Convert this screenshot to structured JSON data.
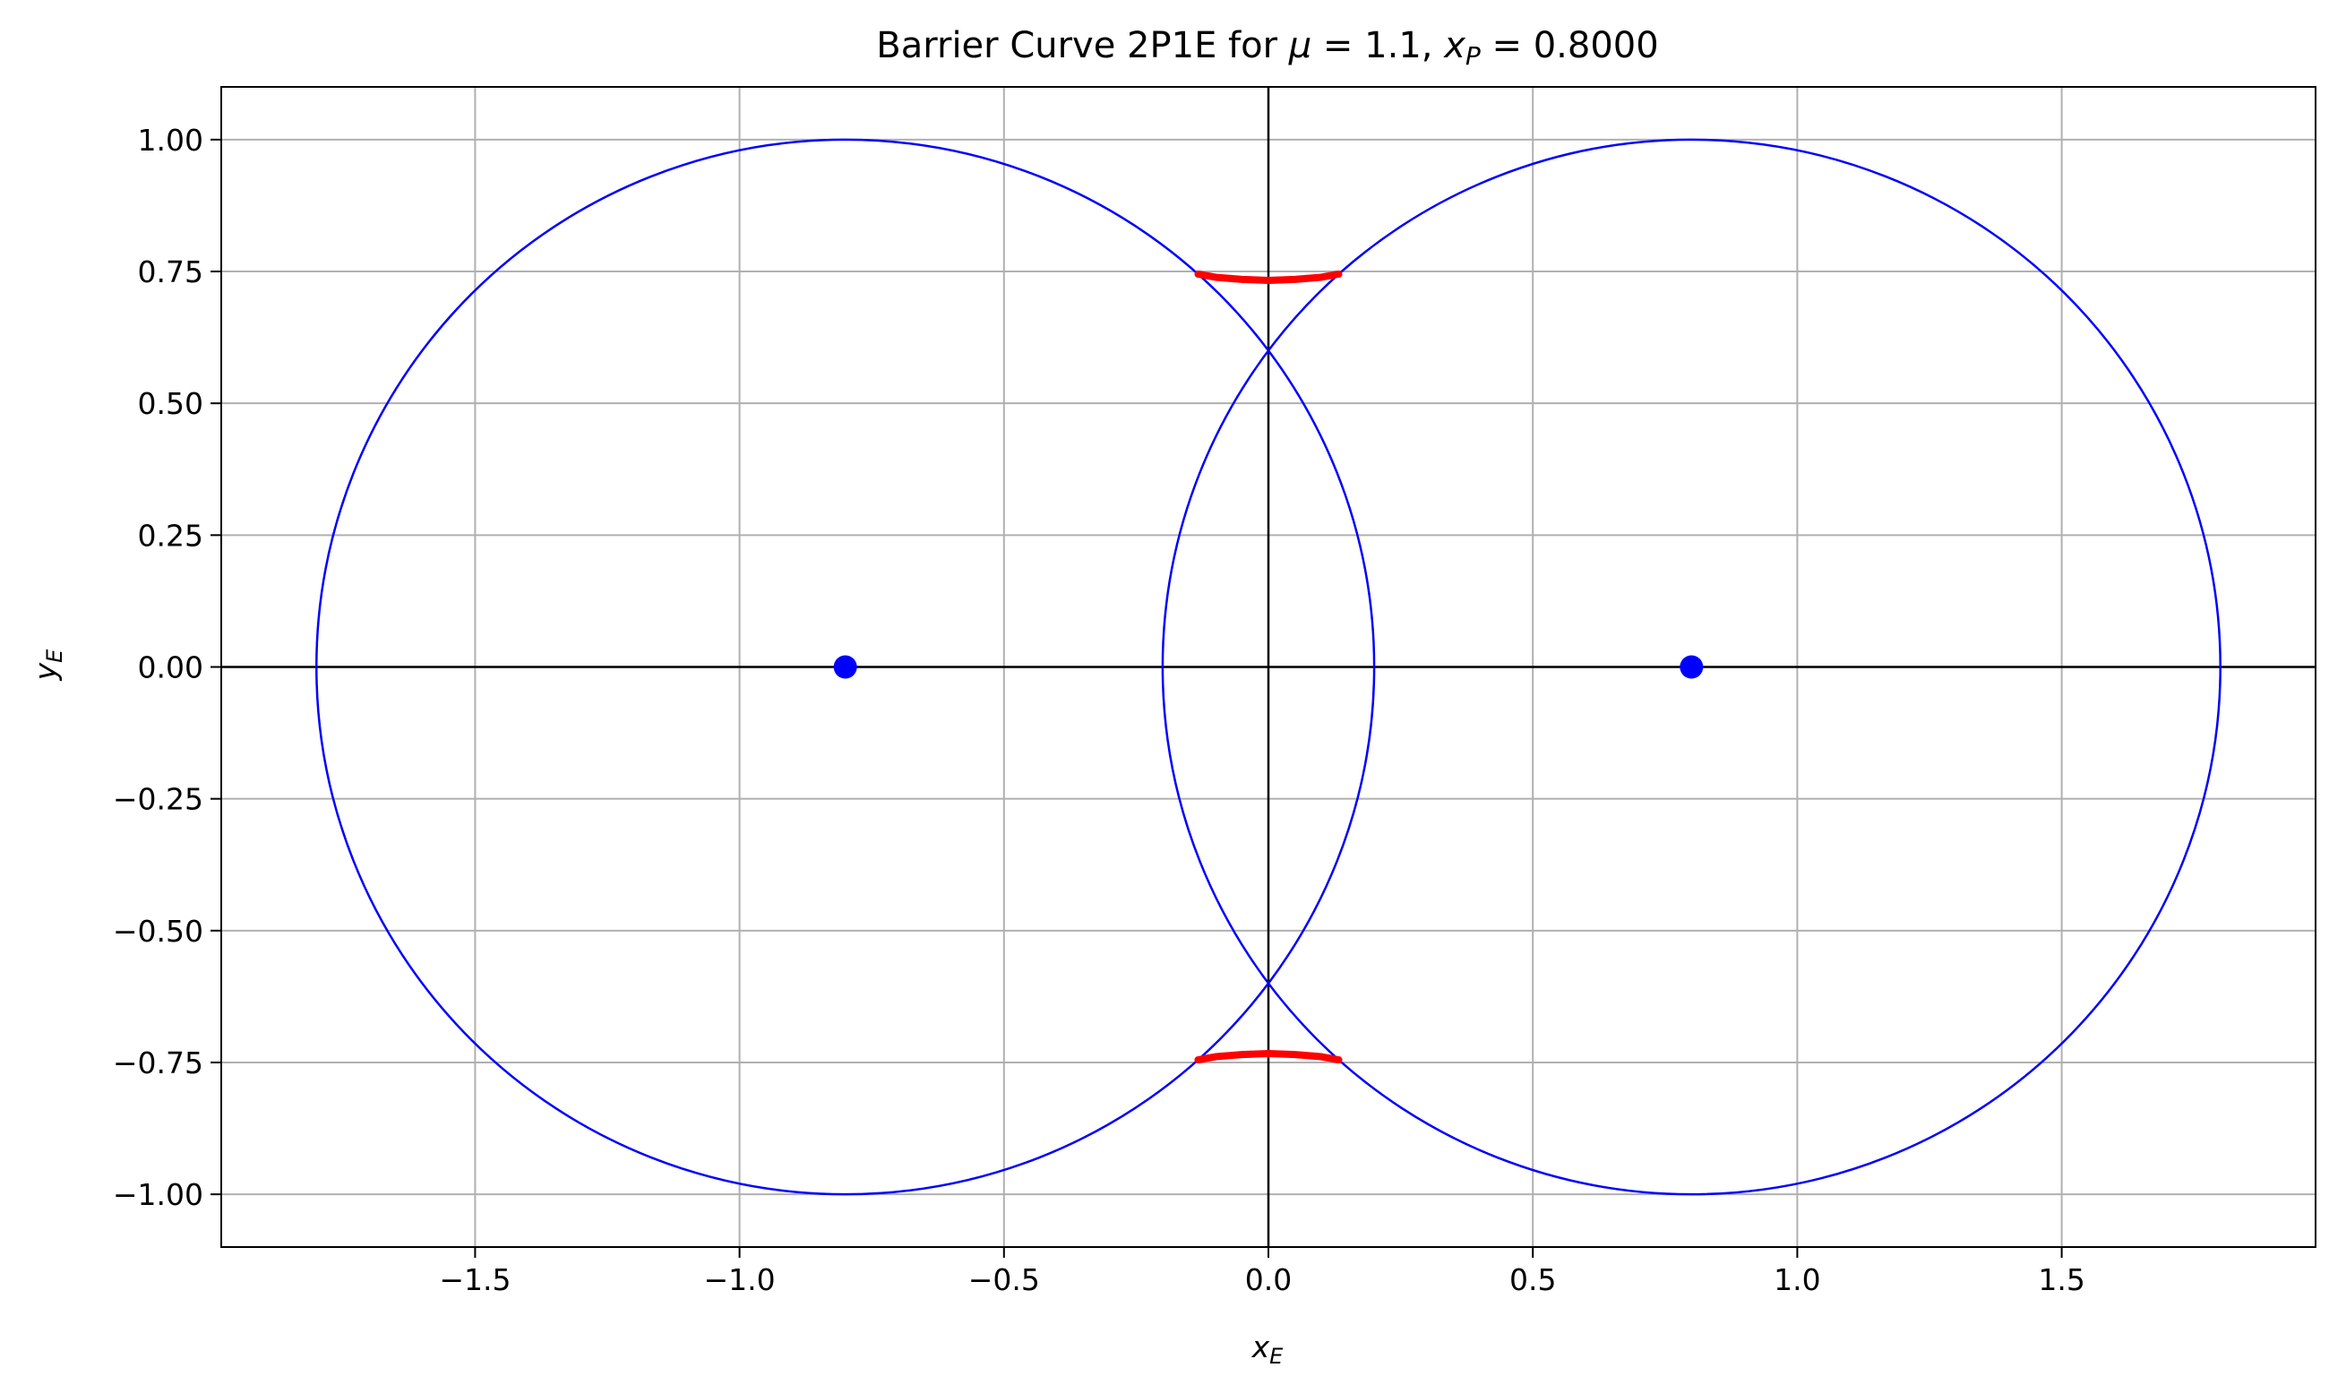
{
  "chart_data": {
    "type": "line",
    "title": {
      "prefix": "Barrier Curve 2P1E for ",
      "mu_symbol": "μ",
      "mu_text": " = 1.1, ",
      "xp_base": "x",
      "xp_sub": "P",
      "xp_text": " = 0.8000"
    },
    "xlabel": {
      "base": "x",
      "sub": "E"
    },
    "ylabel": {
      "base": "y",
      "sub": "E"
    },
    "xlim": [
      -1.98,
      1.98
    ],
    "ylim": [
      -1.1,
      1.1
    ],
    "xticks": [
      -1.5,
      -1.0,
      -0.5,
      0.0,
      0.5,
      1.0,
      1.5
    ],
    "xtick_labels": [
      "−1.5",
      "−1.0",
      "−0.5",
      "0.0",
      "0.5",
      "1.0",
      "1.5"
    ],
    "yticks": [
      -1.0,
      -0.75,
      -0.5,
      -0.25,
      0.0,
      0.25,
      0.5,
      0.75,
      1.0
    ],
    "ytick_labels": [
      "−1.00",
      "−0.75",
      "−0.50",
      "−0.25",
      "0.00",
      "0.25",
      "0.50",
      "0.75",
      "1.00"
    ],
    "grid": true,
    "zero_lines": true,
    "circles": [
      {
        "name": "left-circle",
        "cx": -0.8,
        "cy": 0.0,
        "r": 1.0,
        "color": "#0000ff"
      },
      {
        "name": "right-circle",
        "cx": 0.8,
        "cy": 0.0,
        "r": 1.0,
        "color": "#0000ff"
      }
    ],
    "points": [
      {
        "name": "left-pursuer",
        "x": -0.8,
        "y": 0.0,
        "color": "#0000ff"
      },
      {
        "name": "right-pursuer",
        "x": 0.8,
        "y": 0.0,
        "color": "#0000ff"
      }
    ],
    "barrier_curves": [
      {
        "name": "upper-barrier",
        "x": [
          -0.133,
          -0.1,
          -0.05,
          0.0,
          0.05,
          0.1,
          0.133
        ],
        "y": [
          0.745,
          0.739,
          0.735,
          0.733,
          0.735,
          0.739,
          0.745
        ],
        "color": "#ff0000"
      },
      {
        "name": "lower-barrier",
        "x": [
          -0.133,
          -0.1,
          -0.05,
          0.0,
          0.05,
          0.1,
          0.133
        ],
        "y": [
          -0.745,
          -0.739,
          -0.735,
          -0.733,
          -0.735,
          -0.739,
          -0.745
        ],
        "color": "#ff0000"
      }
    ]
  }
}
